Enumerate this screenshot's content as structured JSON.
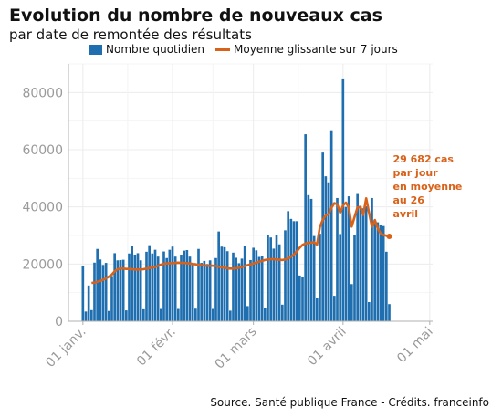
{
  "title": "Evolution du nombre de nouveaux cas",
  "subtitle": "par date de remontée des résultats",
  "source": "Source. Santé publique France - Crédits. franceinfo",
  "colors": {
    "bar": "#1f6fb0",
    "line": "#d9621a",
    "grid": "#ececec",
    "tick": "#9a9a9a"
  },
  "chart_data": {
    "type": "bar",
    "title": "Evolution du nombre de nouveaux cas",
    "subtitle": "par date de remontée des résultats",
    "xlabel": "",
    "ylabel": "",
    "ylim": [
      0,
      90000
    ],
    "yticks": [
      0,
      20000,
      40000,
      60000,
      80000
    ],
    "ytick_labels": [
      "0",
      "20000",
      "40000",
      "60000",
      "80000"
    ],
    "x_start": "2021-01-01",
    "x_range": [
      "2020-12-27",
      "2021-05-02"
    ],
    "xticks": [
      "2021-01-01",
      "2021-02-01",
      "2021-03-01",
      "2021-04-01",
      "2021-05-01"
    ],
    "xtick_labels": [
      "01 janv.",
      "01 févr.",
      "01 mars",
      "01 avril",
      "01 mai"
    ],
    "grid": true,
    "legend": "top",
    "series": [
      {
        "name": "Nombre quotidien",
        "type": "bar",
        "values": [
          19300,
          3400,
          12500,
          3900,
          20500,
          25300,
          21600,
          19700,
          20400,
          3600,
          15800,
          23800,
          21300,
          21400,
          21500,
          3800,
          23700,
          26400,
          23300,
          23800,
          21300,
          4200,
          24300,
          26600,
          23700,
          25000,
          22600,
          4300,
          24400,
          22100,
          25000,
          26100,
          22600,
          4300,
          23300,
          24700,
          24900,
          22600,
          19700,
          4400,
          25300,
          20400,
          21100,
          20000,
          21300,
          4300,
          22100,
          31400,
          26100,
          25900,
          24500,
          3700,
          24000,
          22200,
          20300,
          21900,
          26400,
          5300,
          21400,
          25700,
          24800,
          22500,
          22900,
          4600,
          30100,
          29300,
          25400,
          30000,
          26900,
          5800,
          31800,
          38500,
          35800,
          35000,
          35000,
          16000,
          15500,
          65400,
          44100,
          42800,
          29800,
          8000,
          30600,
          59000,
          50700,
          48600,
          66800,
          8900,
          43100,
          30500,
          84600,
          40000,
          43700,
          13000,
          30000,
          44500,
          40300,
          39500,
          40200,
          6700,
          43100,
          34700,
          34600,
          33800,
          33300,
          24300,
          6000
        ],
        "unit": "cases"
      },
      {
        "name": "Moyenne glissante sur 7 jours",
        "type": "line",
        "values": [
          13400,
          13500,
          13800,
          14100,
          14500,
          15000,
          15600,
          16300,
          17500,
          18200,
          18400,
          18400,
          18300,
          18300,
          18200,
          18100,
          18100,
          18100,
          18200,
          18400,
          18600,
          18800,
          19000,
          19400,
          19800,
          20100,
          20200,
          20300,
          20300,
          20400,
          20500,
          20400,
          20400,
          20300,
          20200,
          20000,
          19900,
          19700,
          19600,
          19500,
          19400,
          19400,
          19400,
          19300,
          19100,
          18900,
          18700,
          18500,
          18400,
          18400,
          18500,
          18700,
          19000,
          19300,
          19600,
          19900,
          20200,
          20500,
          20800,
          21100,
          21400,
          21600,
          21700,
          21700,
          21600,
          21500,
          21400,
          21600,
          22000,
          22600,
          23300,
          24400,
          25700,
          26700,
          27200,
          27400,
          27500,
          27600,
          26800,
          33000,
          35500,
          37100,
          37400,
          39700,
          41300,
          40900,
          38000,
          40500,
          41500,
          39800,
          33100,
          36500,
          39800,
          40000,
          37200,
          43000,
          38000,
          33100,
          35400,
          32500,
          30700,
          30200,
          29900,
          29682
        ],
        "unit": "cases"
      }
    ],
    "annotations": [
      {
        "text": "29 682 cas par jour en moyenne au 26 avril",
        "lines": [
          "29 682 cas",
          "par jour",
          "en moyenne",
          "au 26",
          "avril"
        ],
        "x": "2021-04-26",
        "y": 29682
      }
    ]
  }
}
